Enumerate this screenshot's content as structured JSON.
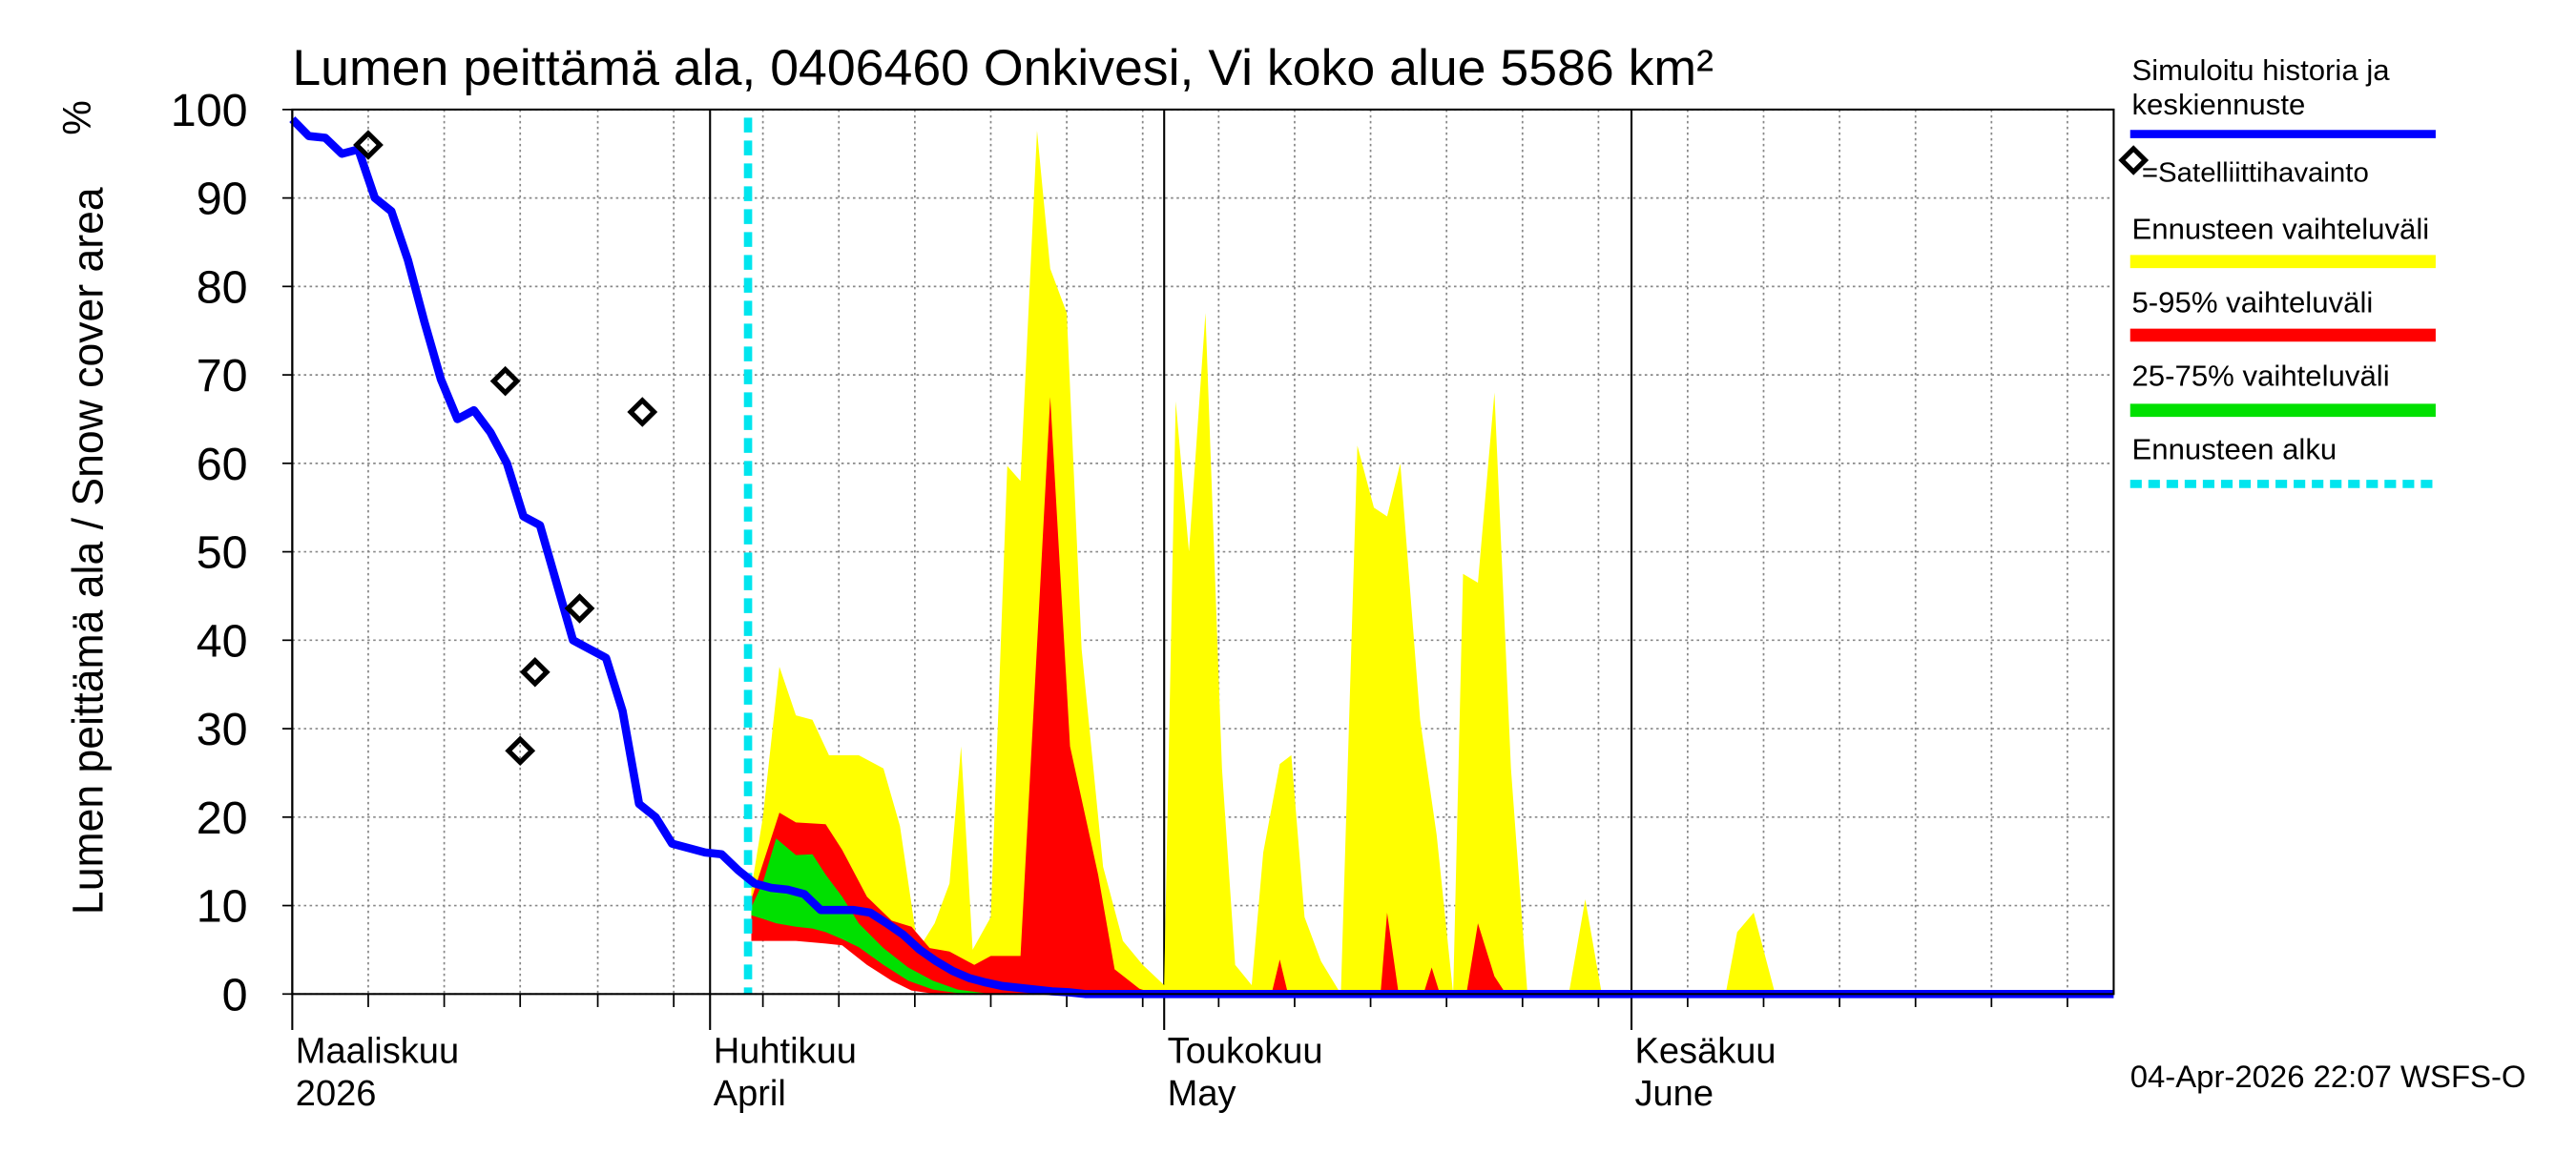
{
  "chart_data": {
    "type": "snow-forecast",
    "title": "Lumen peittämä ala, 0406460 Onkivesi, Vi koko alue 5586 km²",
    "y_label": "Lumen peittämä ala / Snow cover area",
    "y_unit": "%",
    "footer": "04-Apr-2026 22:07 WSFS-O",
    "xlim": [
      0,
      110.3
    ],
    "ylim": [
      0,
      100
    ],
    "yticks": [
      0,
      10,
      20,
      30,
      40,
      50,
      60,
      70,
      80,
      90,
      100
    ],
    "xticks": [
      {
        "value": 0,
        "label": "Maaliskuu",
        "sublabel": "2026"
      },
      {
        "value": 25.3,
        "label": "Huhtikuu",
        "sublabel": "April"
      },
      {
        "value": 52.8,
        "label": "Toukokuu",
        "sublabel": "May"
      },
      {
        "value": 81.1,
        "label": "Kesäkuu",
        "sublabel": "June"
      }
    ],
    "xgrid": [
      4.6,
      9.2,
      13.8,
      18.5,
      23.1,
      28.5,
      33.1,
      37.7,
      42.3,
      46.9,
      51.5,
      56.1,
      60.7,
      65.3,
      69.9,
      74.5,
      79.1,
      84.5,
      89.1,
      93.7,
      98.3,
      102.9,
      107.5
    ],
    "grid": true,
    "series": [
      {
        "name": "Simuloitu historia ja keskiennuste",
        "kind": "line",
        "color": "#0000ff",
        "x": [
          0,
          1,
          2,
          3,
          4,
          5,
          6,
          7,
          8,
          9,
          10,
          11,
          12,
          13,
          14,
          15,
          16,
          17,
          18,
          19,
          20,
          21,
          22,
          23,
          24,
          25,
          26,
          27,
          28,
          29,
          30,
          31,
          32,
          33,
          34,
          35,
          36,
          37,
          38,
          39,
          40,
          41,
          42,
          43,
          44,
          45,
          46,
          47,
          48,
          110.3
        ],
        "values": [
          98.9,
          97,
          96.8,
          95,
          95.5,
          90,
          88.5,
          83,
          76,
          69.5,
          65,
          66,
          63.5,
          60,
          54,
          53,
          46.5,
          40,
          39,
          38,
          32,
          21.5,
          20,
          17,
          16.5,
          16,
          15.8,
          14,
          12.5,
          12,
          11.8,
          11.3,
          9.5,
          9.5,
          9.5,
          9.2,
          8,
          6.7,
          5,
          3.7,
          2.6,
          1.8,
          1.3,
          0.9,
          0.7,
          0.5,
          0.3,
          0.2,
          0,
          0
        ]
      },
      {
        "name": "=Satelliittihavainto",
        "kind": "points",
        "color": "#000000",
        "x": [
          4.6,
          12.9,
          13.8,
          14.7,
          17.4,
          21.2
        ],
        "values": [
          96,
          69.3,
          27.5,
          36.4,
          43.6,
          65.8
        ]
      },
      {
        "name": "Ennusteen vaihteluväli",
        "kind": "band",
        "color": "#ffff00",
        "x": [
          27.8,
          28.5,
          29.5,
          30.5,
          31.5,
          32.5,
          34.3,
          35.8,
          36.8,
          37.9,
          38.9,
          39.8,
          40.5,
          41.2,
          42.3,
          43.3,
          44.1,
          45.1,
          45.9,
          46.9,
          47.8,
          49.1,
          50.3,
          51.5,
          52.8,
          53.5,
          54.3,
          55.3,
          56.3,
          57.1,
          58.1,
          58.8,
          59.8,
          60.5,
          61.3,
          62.3,
          63.5,
          64.5,
          65.5,
          66.3,
          67.1,
          68.3,
          69.3,
          70.3,
          70.9,
          71.8,
          72.8,
          73.8,
          74.8,
          77.3,
          78.3,
          79.3,
          86.8,
          87.5,
          88.5,
          89.8
        ],
        "high": [
          11.9,
          20,
          37,
          31.5,
          31,
          27,
          27,
          25.5,
          19,
          5,
          8,
          12.5,
          28,
          5,
          8.7,
          59.7,
          58,
          97.6,
          82,
          77,
          39,
          14.4,
          6,
          3.3,
          1,
          67,
          50,
          77,
          25.5,
          3.3,
          1,
          16,
          26,
          27,
          8.7,
          3.7,
          0,
          62,
          55,
          54,
          60,
          31,
          18,
          0,
          47.5,
          46.5,
          68,
          25.5,
          0,
          0,
          10.7,
          0,
          0,
          7,
          9.2,
          0
        ],
        "low": [
          10,
          8,
          7,
          6.5,
          6.5,
          6,
          6,
          4,
          2,
          1,
          0.5,
          0.3,
          0.2,
          0,
          0,
          0,
          0,
          0,
          0,
          0,
          0,
          0,
          0,
          0,
          0,
          0,
          0,
          0,
          0,
          0,
          0,
          0,
          0,
          0,
          0,
          0,
          0,
          0,
          0,
          0,
          0,
          0,
          0,
          0,
          0,
          0,
          0,
          0,
          0,
          0,
          0,
          0,
          0,
          0,
          0,
          0
        ]
      },
      {
        "name": "5-95% vaihteluväli",
        "kind": "band",
        "color": "#ff0000",
        "x": [
          27.8,
          29.5,
          30.5,
          32.3,
          33.3,
          34.8,
          36.3,
          37.5,
          38.6,
          39.8,
          41.3,
          42.3,
          44.1,
          45.9,
          47.1,
          48.8,
          49.8,
          51.3,
          52.3,
          59.3,
          59.8,
          60.3,
          65.9,
          66.3,
          67.0,
          68.5,
          69.0,
          69.5,
          71.1,
          71.8,
          72.8,
          73.5
        ],
        "high": [
          10.7,
          20.5,
          19.4,
          19.2,
          16.3,
          11,
          8.3,
          7.6,
          5.2,
          4.8,
          3.3,
          4.3,
          4.3,
          67.5,
          28,
          13.5,
          2.8,
          0.6,
          0,
          0,
          3.9,
          0,
          0,
          9.2,
          0,
          0,
          3,
          0,
          0,
          8,
          2,
          0
        ],
        "low": [
          6,
          6,
          6,
          5.7,
          5.5,
          3.3,
          1.5,
          0.4,
          0.1,
          0,
          0,
          0,
          0,
          0,
          0,
          0,
          0,
          0,
          0,
          0,
          0,
          0,
          0,
          0,
          0,
          0,
          0,
          0,
          0,
          0,
          0,
          0
        ]
      },
      {
        "name": "25-75% vaihteluväli",
        "kind": "band",
        "color": "#00e000",
        "x": [
          27.8,
          28.5,
          29.3,
          30.5,
          31.5,
          32.3,
          33.3,
          34.3,
          35.8,
          37.3,
          38.8,
          40.3,
          42.3
        ],
        "high": [
          9.8,
          12.6,
          17.6,
          15.7,
          15.8,
          13.5,
          11,
          8,
          5.2,
          3,
          1.5,
          0.5,
          0
        ],
        "low": [
          8.9,
          8.5,
          8,
          7.6,
          7.4,
          7,
          6.2,
          5.3,
          3.3,
          1.5,
          0.5,
          0.1,
          0
        ]
      },
      {
        "name": "Ennusteen alku",
        "kind": "vline",
        "color": "#00e5ee",
        "x": 27.6
      }
    ]
  }
}
